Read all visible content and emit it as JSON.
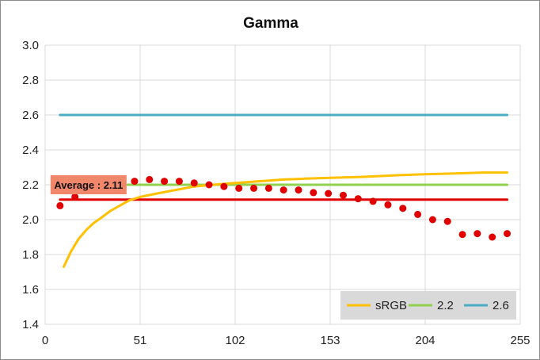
{
  "chart_data": {
    "type": "line",
    "title": "Gamma",
    "xlim": [
      0,
      255
    ],
    "ylim": [
      1.4,
      3.0
    ],
    "x_ticks": [
      0,
      51,
      102,
      153,
      204,
      255
    ],
    "y_ticks": [
      "1.4",
      "1.6",
      "1.8",
      "2.0",
      "2.2",
      "2.4",
      "2.6",
      "2.8",
      "3.0"
    ],
    "grid": true,
    "legend_position": "bottom-right",
    "annotation": {
      "text": "Average : 2.11",
      "x": 8,
      "y": 2.2,
      "color": "#f0866a"
    },
    "series": [
      {
        "name": "sRGB",
        "kind": "line",
        "color": "#ffc000",
        "x": [
          10,
          14,
          18,
          22,
          26,
          30,
          35,
          40,
          45,
          51,
          60,
          70,
          80,
          90,
          102,
          115,
          128,
          140,
          153,
          170,
          190,
          204,
          220,
          235,
          248
        ],
        "y": [
          1.73,
          1.82,
          1.89,
          1.94,
          1.98,
          2.01,
          2.05,
          2.08,
          2.11,
          2.13,
          2.15,
          2.17,
          2.19,
          2.2,
          2.21,
          2.22,
          2.23,
          2.235,
          2.24,
          2.245,
          2.255,
          2.26,
          2.265,
          2.27,
          2.27
        ]
      },
      {
        "name": "2.2",
        "kind": "line",
        "color": "#92d050",
        "x": [
          8,
          248
        ],
        "y": [
          2.2,
          2.2
        ]
      },
      {
        "name": "2.6",
        "kind": "line",
        "color": "#4bacc6",
        "x": [
          8,
          248
        ],
        "y": [
          2.6,
          2.6
        ]
      },
      {
        "name": "",
        "kind": "line",
        "color": "#e00000",
        "x": [
          8,
          248
        ],
        "y": [
          2.115,
          2.115
        ]
      },
      {
        "name": "",
        "kind": "scatter",
        "color": "#e00000",
        "x": [
          8,
          16,
          24,
          32,
          40,
          48,
          56,
          64,
          72,
          80,
          88,
          96,
          104,
          112,
          120,
          128,
          136,
          144,
          152,
          160,
          168,
          176,
          184,
          192,
          200,
          208,
          216,
          224,
          232,
          240,
          248
        ],
        "y": [
          2.08,
          2.13,
          2.17,
          2.19,
          2.21,
          2.22,
          2.23,
          2.22,
          2.22,
          2.21,
          2.2,
          2.19,
          2.18,
          2.18,
          2.18,
          2.17,
          2.17,
          2.155,
          2.15,
          2.14,
          2.12,
          2.105,
          2.085,
          2.065,
          2.03,
          2.0,
          1.99,
          1.915,
          1.92,
          1.9,
          1.92
        ]
      }
    ]
  }
}
